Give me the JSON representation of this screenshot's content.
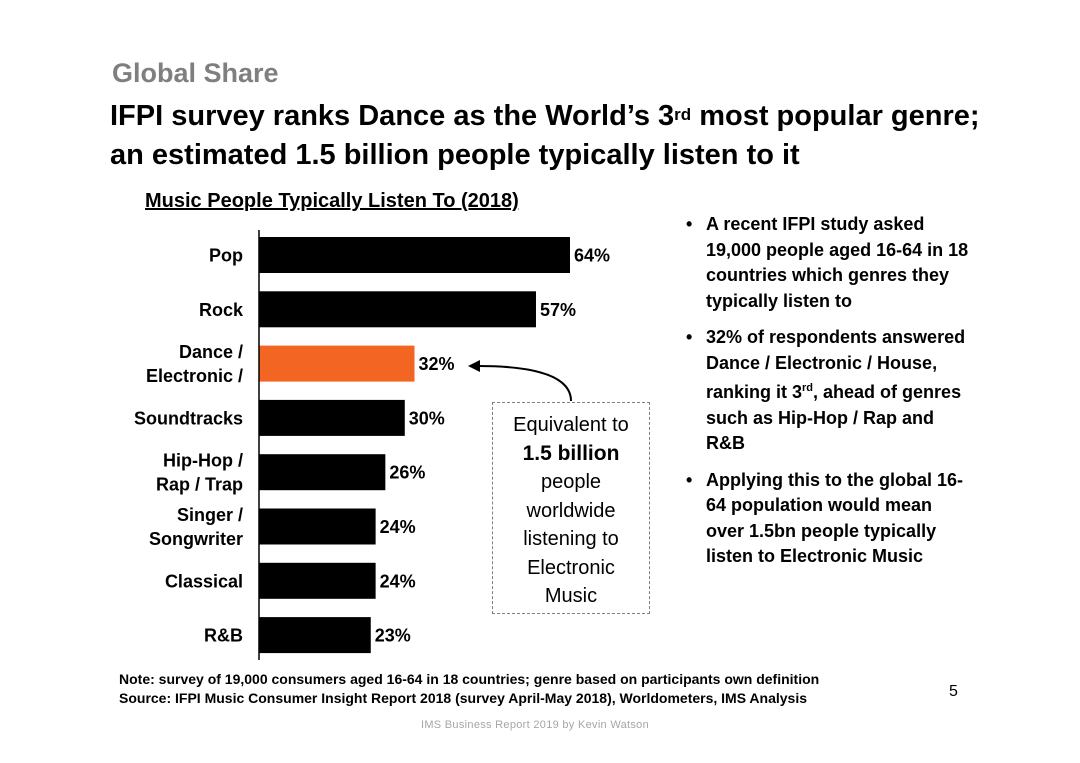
{
  "header": {
    "kicker": "Global Share",
    "headline_part1": "IFPI survey ranks Dance as the World’s 3",
    "headline_sup": "rd",
    "headline_part2": " most popular genre; an estimated 1.5 billion people typically listen to it"
  },
  "chart_data": {
    "type": "bar",
    "orientation": "horizontal",
    "title": "Music People Typically Listen To (2018)",
    "categories": [
      "Pop",
      "Rock",
      "Dance / Electronic /",
      "Soundtracks",
      "Hip-Hop / Rap / Trap",
      "Singer / Songwriter",
      "Classical",
      "R&B"
    ],
    "category_lines": [
      [
        "Pop"
      ],
      [
        "Rock"
      ],
      [
        "Dance /",
        "Electronic /"
      ],
      [
        "Soundtracks"
      ],
      [
        "Hip-Hop /",
        "Rap / Trap"
      ],
      [
        "Singer /",
        "Songwriter"
      ],
      [
        "Classical"
      ],
      [
        "R&B"
      ]
    ],
    "values": [
      64,
      57,
      32,
      30,
      26,
      24,
      24,
      23
    ],
    "value_labels": [
      "64%",
      "57%",
      "32%",
      "30%",
      "26%",
      "24%",
      "24%",
      "23%"
    ],
    "unit": "%",
    "xlim": [
      0,
      64
    ],
    "highlight_index": 2,
    "colors": {
      "bar": "#000000",
      "highlight": "#f26522",
      "axis": "#000000"
    },
    "grid": false,
    "legend": "none"
  },
  "callout": {
    "line1": "Equivalent to",
    "line2": "1.5 billion",
    "line3": "people",
    "line4": "worldwide",
    "line5": "listening to",
    "line6": "Electronic",
    "line7": "Music"
  },
  "bullets": {
    "b1": "A recent IFPI study asked 19,000 people aged 16-64 in 18 countries which genres they typically listen to",
    "b2_part1": "32% of respondents answered Dance / Electronic / House, ranking it 3",
    "b2_sup": "rd",
    "b2_part2": ", ahead of genres such as Hip-Hop / Rap and R&B",
    "b3": "Applying this to the global 16-64 population would mean over 1.5bn people typically listen to Electronic Music"
  },
  "footer": {
    "note": "Note: survey of 19,000 consumers aged 16-64 in 18 countries; genre based on participants own definition",
    "source": "Source: IFPI Music Consumer Insight Report 2018 (survey April-May 2018), Worldometers, IMS Analysis",
    "page_number": "5",
    "credit": "IMS Business Report 2019 by Kevin Watson"
  }
}
